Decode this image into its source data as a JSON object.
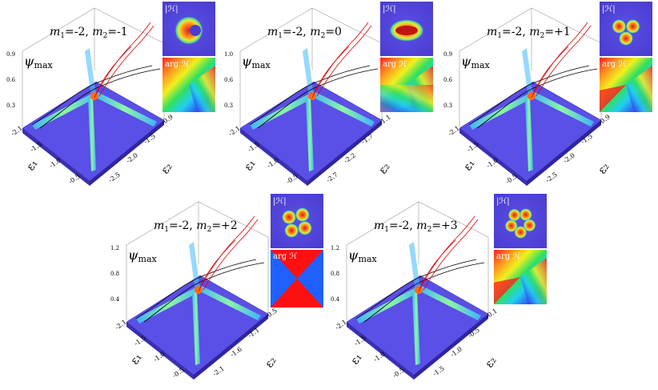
{
  "inset_labels": {
    "abs": "|ℋ|",
    "arg": "arg ℋ"
  },
  "ylabel": "ψ",
  "ylabel_sub": "max",
  "panels": [
    {
      "id": "p1",
      "title_m1": "m",
      "title_m1_sub": "1",
      "title_m1_val": "=-2,",
      "title_m2": "m",
      "title_m2_sub": "2",
      "title_m2_val": "=-1",
      "z_ticks": [
        "0.9",
        "0.6",
        "0.3"
      ],
      "x_ticks": [
        "-2.1",
        "-1.5",
        "-1.0",
        "-0.5"
      ],
      "y_ticks": [
        "-0.9",
        "-1.5",
        "-2.0",
        "-2.5"
      ],
      "x_label": "ε₁",
      "y_label": "ε₂",
      "lobes": 1,
      "arg_style": "vortex"
    },
    {
      "id": "p2",
      "title_m1": "m",
      "title_m1_sub": "1",
      "title_m1_val": "=-2,",
      "title_m2": "m",
      "title_m2_sub": "2",
      "title_m2_val": "=0",
      "z_ticks": [
        "1.0",
        "0.6",
        "0.3"
      ],
      "x_ticks": [
        "-2.1",
        "-1.5",
        "-1.0",
        "-0.5"
      ],
      "y_ticks": [
        "-1.1",
        "-1.7",
        "-2.2",
        "-2.7"
      ],
      "x_label": "ε₁",
      "y_label": "ε₂",
      "lobes": 2,
      "arg_style": "split"
    },
    {
      "id": "p3",
      "title_m1": "m",
      "title_m1_sub": "1",
      "title_m1_val": "=-2,",
      "title_m2": "m",
      "title_m2_sub": "2",
      "title_m2_val": "=+1",
      "z_ticks": [
        "0.9",
        "0.6",
        "0.3"
      ],
      "x_ticks": [
        "-2.1",
        "-1.5",
        "-1.0",
        "-0.5"
      ],
      "y_ticks": [
        "-0.9",
        "-1.5",
        "-2.0",
        "-2.5"
      ],
      "x_label": "ε₁",
      "y_label": "ε₂",
      "lobes": 3,
      "arg_style": "vortex3"
    },
    {
      "id": "p4",
      "title_m1": "m",
      "title_m1_sub": "1",
      "title_m1_val": "=-2,",
      "title_m2": "m",
      "title_m2_sub": "2",
      "title_m2_val": "=+2",
      "z_ticks": [
        "1.2",
        "0.8",
        "0.4"
      ],
      "x_ticks": [
        "-2.1",
        "-1.5",
        "-1.0",
        "-0.5"
      ],
      "y_ticks": [
        "-0.5",
        "-1.1",
        "-1.6",
        "-2.1"
      ],
      "x_label": "ε₁",
      "y_label": "ε₂",
      "lobes": 4,
      "arg_style": "quad"
    },
    {
      "id": "p5",
      "title_m1": "m",
      "title_m1_sub": "1",
      "title_m1_val": "=-2,",
      "title_m2": "m",
      "title_m2_sub": "2",
      "title_m2_val": "=+3",
      "z_ticks": [
        "1.2",
        "0.8",
        "0.4"
      ],
      "x_ticks": [
        "-2.1",
        "-1.5",
        "-1.0",
        "-0.5"
      ],
      "y_ticks": [
        "-0.1",
        "-0.5",
        "-1.0",
        "-1.5"
      ],
      "x_label": "ε₁",
      "y_label": "ε₂",
      "lobes": 5,
      "arg_style": "vortex5"
    }
  ]
}
